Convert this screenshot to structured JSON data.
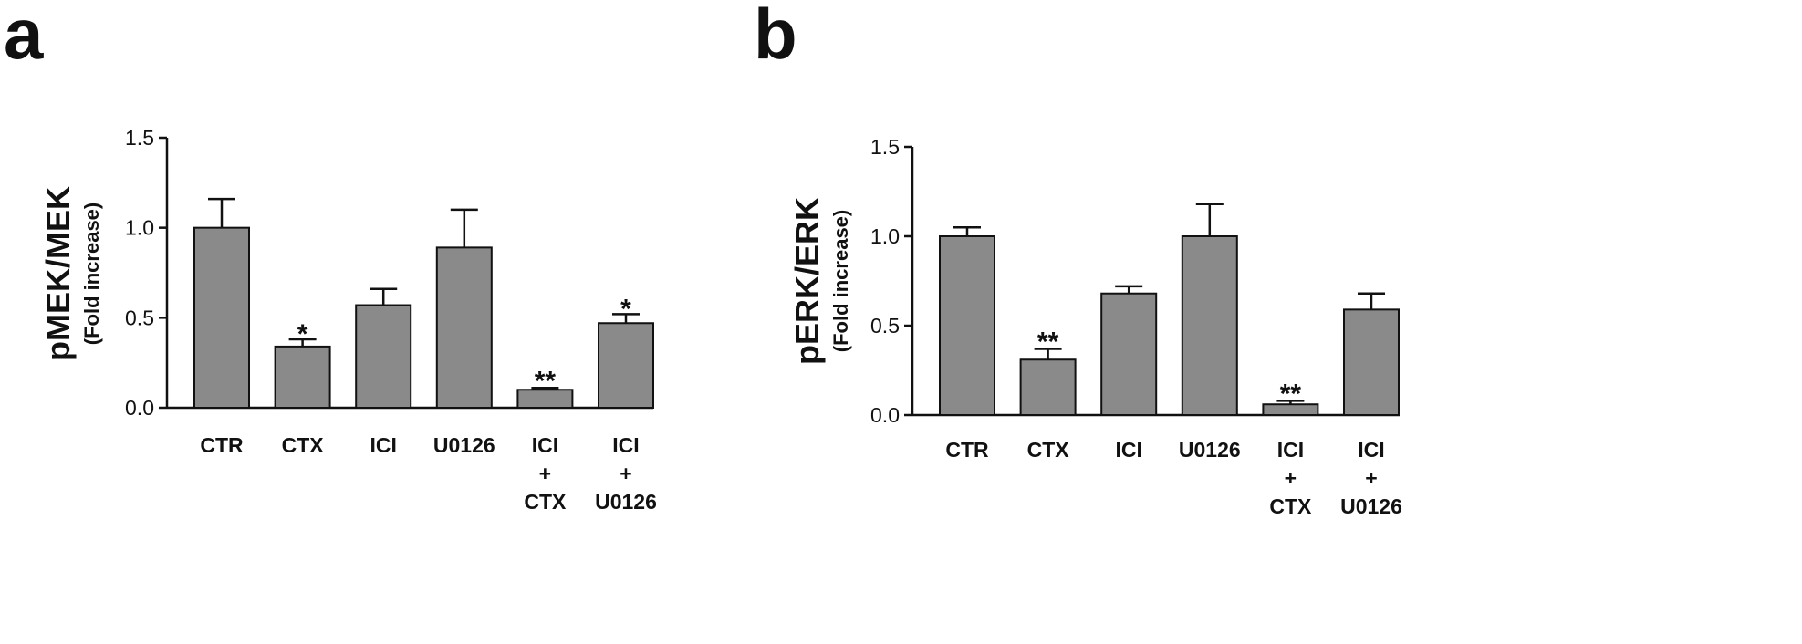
{
  "chart_data": [
    {
      "panel": "a",
      "type": "bar",
      "ylabel": "pMEK/MEK",
      "ylabel_sub": "(Fold increase)",
      "ylim": [
        0,
        1.5
      ],
      "yticks": [
        "0.0",
        "0.5",
        "1.0",
        "1.5"
      ],
      "categories": [
        [
          "CTR"
        ],
        [
          "CTX"
        ],
        [
          "ICI"
        ],
        [
          "U0126"
        ],
        [
          "ICI",
          "+",
          "CTX"
        ],
        [
          "ICI",
          "+",
          "U0126"
        ]
      ],
      "values": [
        1.0,
        0.34,
        0.57,
        0.89,
        0.1,
        0.47
      ],
      "errors": [
        0.16,
        0.04,
        0.09,
        0.21,
        0.01,
        0.05
      ],
      "significance": [
        "",
        "*",
        "",
        "",
        "**",
        "*"
      ]
    },
    {
      "panel": "b",
      "type": "bar",
      "ylabel": "pERK/ERK",
      "ylabel_sub": "(Fold increase)",
      "ylim": [
        0,
        1.5
      ],
      "yticks": [
        "0.0",
        "0.5",
        "1.0",
        "1.5"
      ],
      "categories": [
        [
          "CTR"
        ],
        [
          "CTX"
        ],
        [
          "ICI"
        ],
        [
          "U0126"
        ],
        [
          "ICI",
          "+",
          "CTX"
        ],
        [
          "ICI",
          "+",
          "U0126"
        ]
      ],
      "values": [
        1.0,
        0.31,
        0.68,
        1.0,
        0.06,
        0.59
      ],
      "errors": [
        0.05,
        0.06,
        0.04,
        0.18,
        0.02,
        0.09
      ],
      "significance": [
        "",
        "**",
        "",
        "",
        "**",
        ""
      ]
    }
  ]
}
